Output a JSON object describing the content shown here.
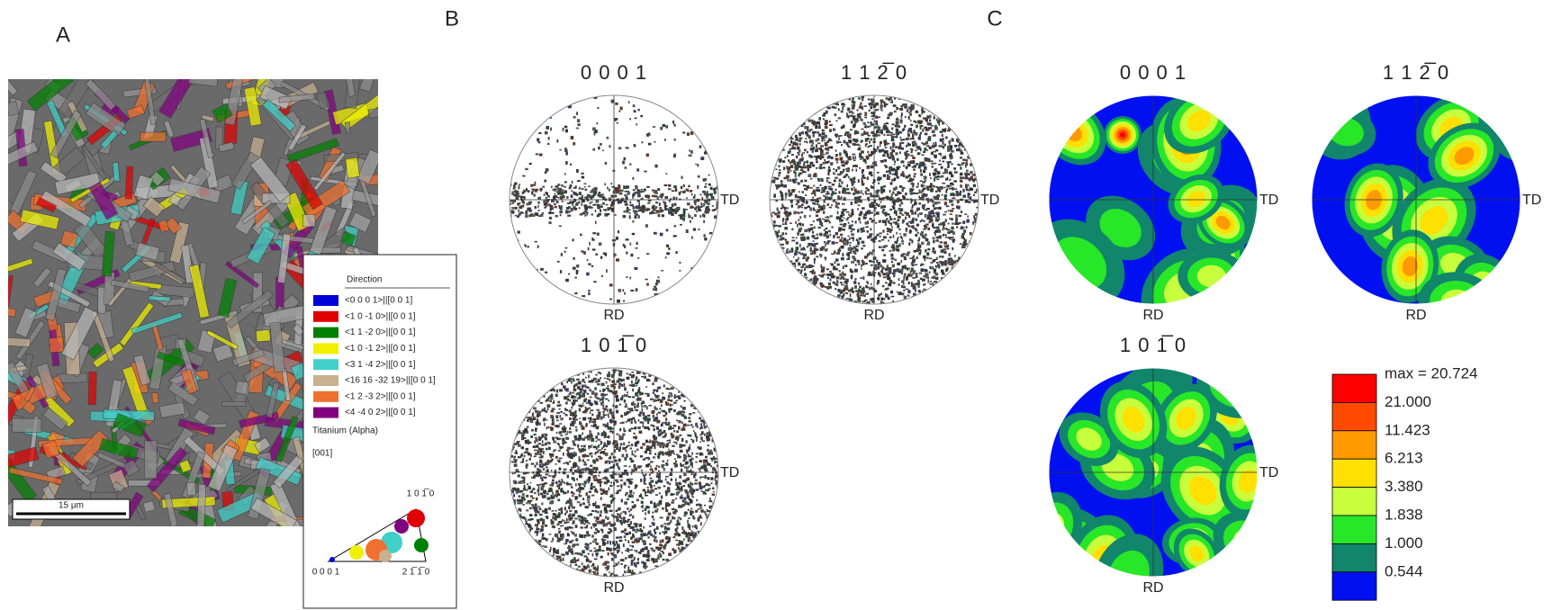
{
  "panels": {
    "A": {
      "label": "A",
      "scale_bar": "15 µm",
      "legend": {
        "title": "Direction",
        "entries": [
          {
            "label": "<0 0 0 1>||[0 0 1]",
            "color": "#0000d8"
          },
          {
            "label": "<1 0 -1 0>||[0 0 1]",
            "color": "#e00000"
          },
          {
            "label": "<1 1 -2 0>||[0 0 1]",
            "color": "#008000"
          },
          {
            "label": "<1 0 -1 2>||[0 0 1]",
            "color": "#f0f000"
          },
          {
            "label": "<3 1 -4 2>||[0 0 1]",
            "color": "#40d0c8"
          },
          {
            "label": "<16 16 -32 19>||[0 0 1]",
            "color": "#c8b090"
          },
          {
            "label": "<1 2 -3 2>||[0 0 1]",
            "color": "#f07030"
          },
          {
            "label": "<4 -4 0 2>||[0 0 1]",
            "color": "#800080"
          }
        ],
        "phase": "Titanium (Alpha)",
        "axis": "[001]",
        "triangle": {
          "top": "1 0 1̅ 0",
          "left": "0 0 0 1",
          "right": "2 1̅ 1̅ 0"
        }
      }
    },
    "B": {
      "label": "B",
      "pole_figures": [
        {
          "title": "0 0 0 1",
          "td": "TD",
          "rd": "RD"
        },
        {
          "title": "1 1 2̅ 0",
          "td": "TD",
          "rd": "RD"
        },
        {
          "title": "1 0 1̅ 0",
          "td": "TD",
          "rd": "RD"
        }
      ]
    },
    "C": {
      "label": "C",
      "pole_figures": [
        {
          "title": "0 0 0 1",
          "td": "TD",
          "rd": "RD"
        },
        {
          "title": "1 1 2̅ 0",
          "td": "TD",
          "rd": "RD"
        },
        {
          "title": "1 0 1̅ 0",
          "td": "TD",
          "rd": "RD"
        }
      ],
      "color_scale": {
        "labels": [
          "max = 20.724",
          "21.000",
          "11.423",
          "6.213",
          "3.380",
          "1.838",
          "1.000",
          "0.544"
        ],
        "colors": [
          "#ff0000",
          "#ff4a00",
          "#ff9900",
          "#ffe000",
          "#c8ff3c",
          "#28e628",
          "#11866a",
          "#0010f0"
        ]
      }
    }
  }
}
